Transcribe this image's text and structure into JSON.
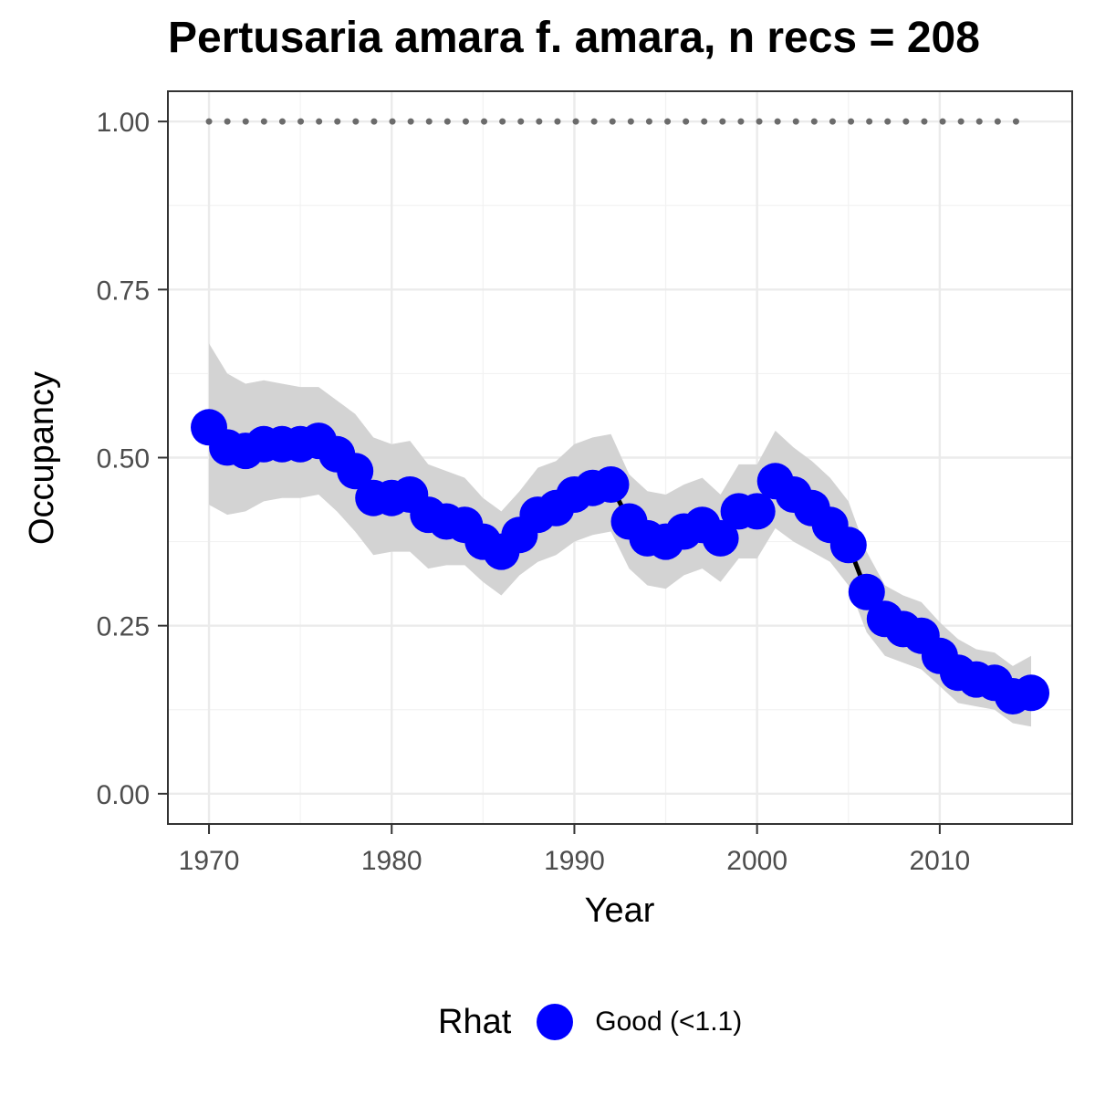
{
  "chart_data": {
    "type": "line",
    "title": "Pertusaria amara f. amara, n recs = 208",
    "xlabel": "Year",
    "ylabel": "Occupancy",
    "xlim": [
      1967.75,
      2017.25
    ],
    "ylim": [
      -0.045,
      1.045
    ],
    "x_ticks": [
      1970,
      1980,
      1990,
      2000,
      2010
    ],
    "y_ticks": [
      0,
      0.25,
      0.5,
      0.75,
      1.0
    ],
    "y_tick_labels": [
      "0.00",
      "0.25",
      "0.50",
      "0.75",
      "1.00"
    ],
    "grid": true,
    "legend_position": "bottom",
    "reference_line": {
      "y": 1.0,
      "style": "dotted"
    },
    "series": [
      {
        "x": [
          1970,
          1971,
          1972,
          1973,
          1974,
          1975,
          1976,
          1977,
          1978,
          1979,
          1980,
          1981,
          1982,
          1983,
          1984,
          1985,
          1986,
          1987,
          1988,
          1989,
          1990,
          1991,
          1992,
          1993,
          1994,
          1995,
          1996,
          1997,
          1998,
          1999,
          2000,
          2001,
          2002,
          2003,
          2004,
          2005,
          2006,
          2007,
          2008,
          2009,
          2010,
          2011,
          2012,
          2013,
          2014,
          2015
        ],
        "y": [
          0.545,
          0.515,
          0.51,
          0.52,
          0.52,
          0.52,
          0.525,
          0.505,
          0.48,
          0.44,
          0.44,
          0.445,
          0.415,
          0.405,
          0.4,
          0.375,
          0.36,
          0.385,
          0.415,
          0.425,
          0.445,
          0.455,
          0.46,
          0.405,
          0.38,
          0.375,
          0.39,
          0.4,
          0.38,
          0.42,
          0.42,
          0.465,
          0.445,
          0.425,
          0.4,
          0.37,
          0.3,
          0.26,
          0.245,
          0.235,
          0.205,
          0.18,
          0.17,
          0.165,
          0.145,
          0.15
        ],
        "lower": [
          0.43,
          0.415,
          0.42,
          0.435,
          0.44,
          0.44,
          0.445,
          0.42,
          0.39,
          0.355,
          0.36,
          0.36,
          0.335,
          0.34,
          0.34,
          0.315,
          0.295,
          0.325,
          0.345,
          0.355,
          0.375,
          0.385,
          0.39,
          0.335,
          0.31,
          0.305,
          0.325,
          0.335,
          0.315,
          0.35,
          0.35,
          0.395,
          0.375,
          0.36,
          0.345,
          0.31,
          0.24,
          0.205,
          0.195,
          0.185,
          0.16,
          0.135,
          0.13,
          0.125,
          0.105,
          0.1
        ],
        "upper": [
          0.67,
          0.625,
          0.61,
          0.615,
          0.61,
          0.605,
          0.605,
          0.585,
          0.565,
          0.53,
          0.52,
          0.525,
          0.49,
          0.48,
          0.47,
          0.44,
          0.42,
          0.45,
          0.485,
          0.495,
          0.52,
          0.53,
          0.535,
          0.475,
          0.45,
          0.445,
          0.46,
          0.47,
          0.445,
          0.49,
          0.49,
          0.54,
          0.515,
          0.495,
          0.47,
          0.435,
          0.36,
          0.31,
          0.295,
          0.285,
          0.255,
          0.23,
          0.215,
          0.21,
          0.19,
          0.205
        ]
      }
    ],
    "legend": {
      "title": "Rhat",
      "entries": [
        {
          "label": "Good (<1.1)"
        }
      ]
    },
    "colors": {
      "point": "#0000ff",
      "line": "#000000",
      "ribbon": "#d3d3d3",
      "reference": "#6b6b6b",
      "grid_major": "#ebebeb",
      "grid_minor": "#f2f2f2",
      "panel_border": "#333333",
      "tick_label": "#4d4d4d"
    }
  }
}
